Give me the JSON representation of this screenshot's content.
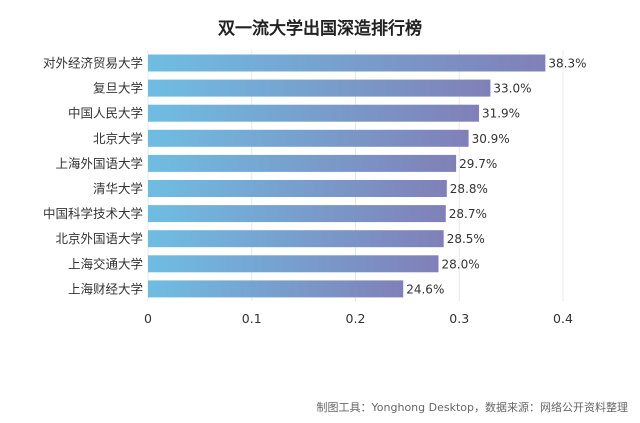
{
  "chart_data": {
    "type": "bar",
    "orientation": "horizontal",
    "title": "双一流大学出国深造排行榜",
    "categories": [
      "对外经济贸易大学",
      "复旦大学",
      "中国人民大学",
      "北京大学",
      "上海外国语大学",
      "清华大学",
      "中国科学技术大学",
      "北京外国语大学",
      "上海交通大学",
      "上海财经大学"
    ],
    "values": [
      0.383,
      0.33,
      0.319,
      0.309,
      0.297,
      0.288,
      0.287,
      0.285,
      0.28,
      0.246
    ],
    "value_labels": [
      "38.3%",
      "33.0%",
      "31.9%",
      "30.9%",
      "29.7%",
      "28.8%",
      "28.7%",
      "28.5%",
      "28.0%",
      "24.6%"
    ],
    "xlim": [
      0,
      0.4
    ],
    "xticks": [
      0,
      0.1,
      0.2,
      0.3,
      0.4
    ],
    "xtick_labels": [
      "0",
      "0.1",
      "0.2",
      "0.3",
      "0.4"
    ],
    "xlabel": "",
    "ylabel": "",
    "grid": true,
    "colors": {
      "bar_start": "#6fbde2",
      "bar_end": "#8080b8",
      "grid": "#e8e8e8"
    }
  },
  "source_note": "制图工具：Yonghong Desktop，数据来源：网络公开资料整理"
}
